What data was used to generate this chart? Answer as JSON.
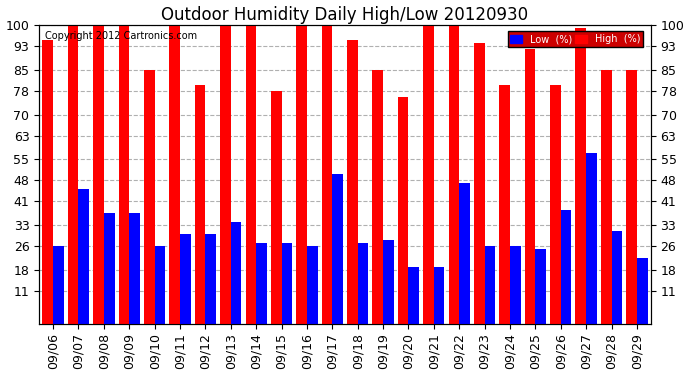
{
  "title": "Outdoor Humidity Daily High/Low 20120930",
  "copyright": "Copyright 2012 Cartronics.com",
  "dates": [
    "09/06",
    "09/07",
    "09/08",
    "09/09",
    "09/10",
    "09/11",
    "09/12",
    "09/13",
    "09/14",
    "09/15",
    "09/16",
    "09/17",
    "09/18",
    "09/19",
    "09/20",
    "09/21",
    "09/22",
    "09/23",
    "09/24",
    "09/25",
    "09/26",
    "09/27",
    "09/28",
    "09/29"
  ],
  "high_values": [
    95,
    100,
    100,
    100,
    85,
    100,
    80,
    100,
    100,
    78,
    100,
    100,
    95,
    85,
    76,
    100,
    100,
    94,
    80,
    92,
    80,
    99,
    85,
    85
  ],
  "low_values": [
    26,
    45,
    37,
    37,
    26,
    30,
    30,
    34,
    27,
    27,
    26,
    50,
    27,
    28,
    19,
    19,
    47,
    26,
    26,
    25,
    38,
    57,
    31,
    22
  ],
  "high_color": "#ff0000",
  "low_color": "#0000ff",
  "bg_color": "#ffffff",
  "grid_color": "#b0b0b0",
  "yticks": [
    11,
    18,
    26,
    33,
    41,
    48,
    55,
    63,
    70,
    78,
    85,
    93,
    100
  ],
  "ymin": 11,
  "ymax": 100,
  "title_fontsize": 12,
  "tick_fontsize": 9,
  "legend_low_label": "Low  (%)",
  "legend_high_label": "High  (%)"
}
